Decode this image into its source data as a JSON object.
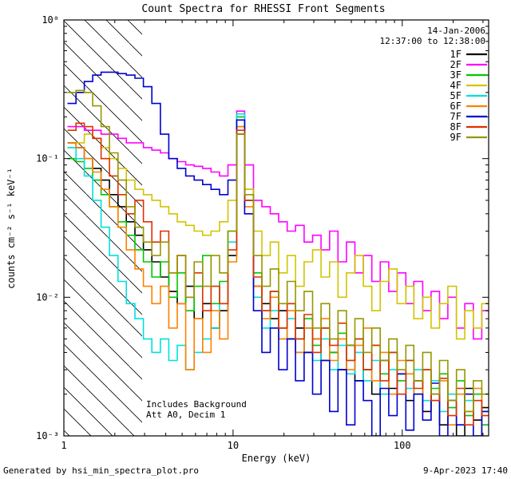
{
  "page": {
    "footer_left": "Generated by hsi_min_spectra_plot.pro",
    "footer_right": "9-Apr-2023 17:40"
  },
  "chart_data": {
    "type": "line",
    "line_mode": "step-histogram",
    "title": "Count Spectra for RHESSI Front Segments",
    "obs_date": "14-Jan-2006",
    "obs_time_range": "12:37:00 to 12:38:00",
    "note_background": "Includes Background",
    "note_attenuator": "Att A0, Decim 1",
    "xlabel": "Energy (keV)",
    "ylabel": "counts cm⁻² s⁻¹ keV⁻¹",
    "xscale": "log",
    "yscale": "log",
    "xlim": [
      1,
      324
    ],
    "ylim": [
      0.001,
      1
    ],
    "grid": false,
    "legend_position": "top-right",
    "x_tick_values": [
      1,
      10,
      100
    ],
    "x_tick_labels": [
      "1",
      "10",
      "100"
    ],
    "y_tick_values": [
      1,
      0.1,
      0.01,
      0.001
    ],
    "y_tick_labels": [
      "10⁰",
      "10⁻¹",
      "10⁻²",
      "10⁻³"
    ],
    "hatch_region": {
      "x_min": 1,
      "x_max": 2.9,
      "style": "diagonal-hatch",
      "meaning": "excluded low-energy band"
    },
    "x": [
      1.05,
      1.18,
      1.32,
      1.48,
      1.66,
      1.86,
      2.09,
      2.34,
      2.63,
      2.95,
      3.31,
      3.72,
      4.17,
      4.68,
      5.25,
      5.89,
      6.61,
      7.41,
      8.32,
      9.33,
      10.5,
      11.7,
      13.2,
      14.8,
      16.6,
      18.6,
      20.9,
      23.4,
      26.3,
      29.5,
      33.1,
      37.2,
      41.7,
      46.8,
      52.5,
      58.9,
      66.1,
      74.1,
      83.2,
      93.3,
      105,
      117,
      132,
      148,
      166,
      186,
      209,
      234,
      263,
      295
    ],
    "series": [
      {
        "name": "1F",
        "color": "#000000",
        "values": [
          0.13,
          0.12,
          0.1,
          0.085,
          0.07,
          0.055,
          0.045,
          0.035,
          0.028,
          0.022,
          0.018,
          0.014,
          0.011,
          0.009,
          0.012,
          0.007,
          0.009,
          0.006,
          0.008,
          0.02,
          0.15,
          0.05,
          0.012,
          0.009,
          0.007,
          0.008,
          0.005,
          0.006,
          0.004,
          0.005,
          0.0035,
          0.004,
          0.003,
          0.0045,
          0.0025,
          0.003,
          0.002,
          0.0035,
          0.0022,
          0.0028,
          0.0018,
          0.0025,
          0.0015,
          0.002,
          0.0012,
          0.0018,
          0.001,
          0.0022,
          0.0013,
          0.0016
        ]
      },
      {
        "name": "2F",
        "color": "#ff00ff",
        "values": [
          0.17,
          0.17,
          0.16,
          0.16,
          0.15,
          0.15,
          0.14,
          0.13,
          0.13,
          0.12,
          0.115,
          0.11,
          0.1,
          0.095,
          0.09,
          0.088,
          0.085,
          0.08,
          0.075,
          0.09,
          0.22,
          0.09,
          0.05,
          0.045,
          0.04,
          0.035,
          0.03,
          0.033,
          0.025,
          0.028,
          0.022,
          0.03,
          0.018,
          0.025,
          0.015,
          0.02,
          0.013,
          0.018,
          0.011,
          0.015,
          0.009,
          0.013,
          0.008,
          0.011,
          0.007,
          0.01,
          0.006,
          0.009,
          0.005,
          0.008
        ]
      },
      {
        "name": "3F",
        "color": "#00c800",
        "values": [
          0.1,
          0.095,
          0.085,
          0.07,
          0.055,
          0.045,
          0.035,
          0.028,
          0.022,
          0.018,
          0.014,
          0.018,
          0.01,
          0.015,
          0.008,
          0.012,
          0.02,
          0.009,
          0.013,
          0.03,
          0.2,
          0.06,
          0.015,
          0.008,
          0.011,
          0.006,
          0.009,
          0.005,
          0.007,
          0.0045,
          0.006,
          0.004,
          0.0055,
          0.0035,
          0.005,
          0.003,
          0.0045,
          0.0028,
          0.004,
          0.0025,
          0.0035,
          0.002,
          0.003,
          0.0022,
          0.0028,
          0.0016,
          0.0025,
          0.0014,
          0.002,
          0.0012
        ]
      },
      {
        "name": "4F",
        "color": "#d2c400",
        "values": [
          0.12,
          0.13,
          0.15,
          0.14,
          0.12,
          0.1,
          0.085,
          0.07,
          0.06,
          0.055,
          0.05,
          0.045,
          0.04,
          0.035,
          0.033,
          0.03,
          0.028,
          0.03,
          0.035,
          0.05,
          0.17,
          0.06,
          0.03,
          0.02,
          0.025,
          0.015,
          0.02,
          0.012,
          0.018,
          0.022,
          0.014,
          0.018,
          0.01,
          0.015,
          0.02,
          0.012,
          0.008,
          0.013,
          0.016,
          0.009,
          0.012,
          0.007,
          0.01,
          0.006,
          0.009,
          0.012,
          0.005,
          0.008,
          0.006,
          0.009
        ]
      },
      {
        "name": "5F",
        "color": "#00e0e0",
        "values": [
          0.12,
          0.1,
          0.075,
          0.05,
          0.032,
          0.02,
          0.013,
          0.009,
          0.007,
          0.005,
          0.004,
          0.005,
          0.0035,
          0.0045,
          0.003,
          0.004,
          0.005,
          0.006,
          0.009,
          0.025,
          0.21,
          0.05,
          0.01,
          0.006,
          0.008,
          0.005,
          0.007,
          0.004,
          0.006,
          0.0035,
          0.005,
          0.003,
          0.0045,
          0.0028,
          0.004,
          0.0025,
          0.0035,
          0.002,
          0.003,
          0.0028,
          0.0022,
          0.003,
          0.0018,
          0.0025,
          0.0015,
          0.002,
          0.0012,
          0.0018,
          0.001,
          0.0015
        ]
      },
      {
        "name": "6F",
        "color": "#ff8000",
        "values": [
          0.13,
          0.12,
          0.1,
          0.08,
          0.06,
          0.045,
          0.032,
          0.022,
          0.016,
          0.012,
          0.009,
          0.012,
          0.006,
          0.009,
          0.003,
          0.007,
          0.004,
          0.008,
          0.005,
          0.018,
          0.17,
          0.045,
          0.012,
          0.007,
          0.01,
          0.005,
          0.008,
          0.004,
          0.006,
          0.005,
          0.007,
          0.0035,
          0.005,
          0.003,
          0.0045,
          0.006,
          0.0025,
          0.004,
          0.002,
          0.0035,
          0.0028,
          0.002,
          0.003,
          0.0018,
          0.0025,
          0.0012,
          0.002,
          0.0015,
          0.0022,
          0.001
        ]
      },
      {
        "name": "7F",
        "color": "#0000d0",
        "values": [
          0.25,
          0.3,
          0.36,
          0.4,
          0.42,
          0.42,
          0.41,
          0.4,
          0.38,
          0.33,
          0.25,
          0.15,
          0.1,
          0.085,
          0.075,
          0.07,
          0.065,
          0.06,
          0.055,
          0.07,
          0.19,
          0.04,
          0.008,
          0.004,
          0.006,
          0.003,
          0.005,
          0.0025,
          0.004,
          0.002,
          0.0035,
          0.0015,
          0.003,
          0.0012,
          0.0025,
          0.0018,
          0.001,
          0.0022,
          0.0014,
          0.0028,
          0.0011,
          0.002,
          0.0013,
          0.0024,
          0.001,
          0.0018,
          0.0012,
          0.002,
          0.001,
          0.0015
        ]
      },
      {
        "name": "8F",
        "color": "#e03000",
        "values": [
          0.16,
          0.18,
          0.17,
          0.14,
          0.1,
          0.075,
          0.055,
          0.04,
          0.05,
          0.035,
          0.025,
          0.03,
          0.015,
          0.02,
          0.01,
          0.015,
          0.008,
          0.012,
          0.009,
          0.022,
          0.16,
          0.05,
          0.014,
          0.008,
          0.011,
          0.006,
          0.009,
          0.005,
          0.0075,
          0.004,
          0.006,
          0.0045,
          0.0065,
          0.0035,
          0.005,
          0.003,
          0.0045,
          0.0025,
          0.004,
          0.002,
          0.0035,
          0.0022,
          0.003,
          0.0018,
          0.0026,
          0.0014,
          0.0022,
          0.0012,
          0.0018,
          0.0014
        ]
      },
      {
        "name": "9F",
        "color": "#969600",
        "values": [
          0.3,
          0.31,
          0.3,
          0.24,
          0.17,
          0.11,
          0.07,
          0.045,
          0.032,
          0.025,
          0.02,
          0.025,
          0.015,
          0.02,
          0.01,
          0.018,
          0.012,
          0.02,
          0.015,
          0.03,
          0.15,
          0.055,
          0.02,
          0.012,
          0.016,
          0.009,
          0.013,
          0.008,
          0.011,
          0.006,
          0.009,
          0.005,
          0.008,
          0.0045,
          0.007,
          0.004,
          0.006,
          0.0035,
          0.005,
          0.003,
          0.0045,
          0.0025,
          0.004,
          0.002,
          0.0035,
          0.0018,
          0.003,
          0.0015,
          0.0025,
          0.002
        ]
      }
    ]
  }
}
